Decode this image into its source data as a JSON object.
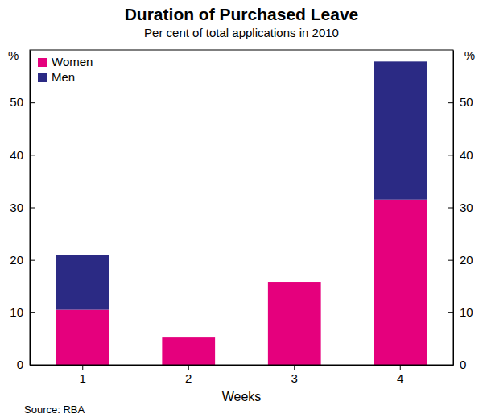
{
  "chart_data": {
    "type": "bar",
    "stacked": true,
    "title": "Duration of Purchased Leave",
    "subtitle": "Per cent of total applications in 2010",
    "x_label": "Weeks",
    "y_label": "%",
    "source": "Source: RBA",
    "categories": [
      "1",
      "2",
      "3",
      "4"
    ],
    "series": [
      {
        "name": "Women",
        "color": "#e5007d",
        "values": [
          10.5,
          5.2,
          15.8,
          31.5
        ]
      },
      {
        "name": "Men",
        "color": "#2b2a84",
        "values": [
          10.5,
          0,
          0,
          26.3
        ]
      }
    ],
    "ylim": [
      0,
      60
    ],
    "yticks": [
      0,
      10,
      20,
      30,
      40,
      50
    ],
    "legend": "top-left",
    "grid": false
  }
}
